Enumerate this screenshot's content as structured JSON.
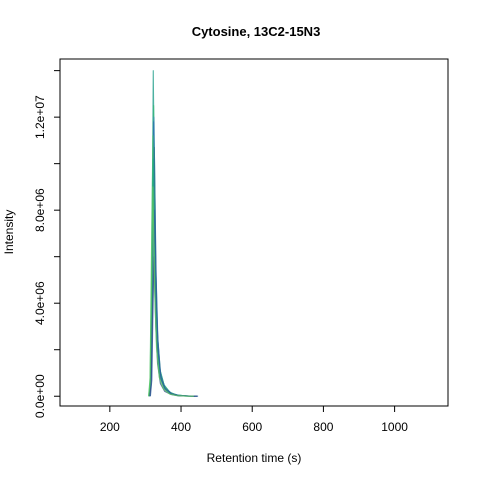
{
  "chart_data": {
    "type": "line",
    "title": "Cytosine, 13C2-15N3",
    "xlabel": "Retention time (s)",
    "ylabel": "Intensity",
    "xlim": [
      60,
      1150
    ],
    "ylim": [
      -420000,
      14500000
    ],
    "x_ticks": [
      200,
      400,
      600,
      800,
      1000
    ],
    "x_tick_labels": [
      "200",
      "400",
      "600",
      "800",
      "1000"
    ],
    "y_ticks": [
      0,
      2000000,
      4000000,
      6000000,
      8000000,
      10000000,
      12000000,
      14000000
    ],
    "y_tick_labels": [
      "0.0e+00",
      "",
      "4.0e+06",
      "",
      "8.0e+06",
      "",
      "1.2e+07",
      ""
    ],
    "grid": false,
    "legend": "none",
    "series": [
      {
        "color": "#1f9e89",
        "apex_x": 322,
        "apex_y": 14000000,
        "values": [
          [
            310,
            0
          ],
          [
            314,
            500000
          ],
          [
            318,
            5000000
          ],
          [
            322,
            14000000
          ],
          [
            327,
            6500000
          ],
          [
            332,
            3000000
          ],
          [
            340,
            1200000
          ],
          [
            352,
            500000
          ],
          [
            368,
            180000
          ],
          [
            385,
            60000
          ],
          [
            410,
            20000
          ],
          [
            440,
            0
          ]
        ]
      },
      {
        "color": "#35b779",
        "apex_x": 323,
        "apex_y": 12500000,
        "values": [
          [
            310,
            0
          ],
          [
            315,
            700000
          ],
          [
            319,
            6000000
          ],
          [
            323,
            12500000
          ],
          [
            328,
            6000000
          ],
          [
            333,
            2800000
          ],
          [
            341,
            1100000
          ],
          [
            353,
            450000
          ],
          [
            370,
            150000
          ],
          [
            390,
            50000
          ],
          [
            415,
            15000
          ],
          [
            440,
            0
          ]
        ]
      },
      {
        "color": "#3a8fb7",
        "apex_x": 324,
        "apex_y": 12000000,
        "values": [
          [
            312,
            0
          ],
          [
            316,
            900000
          ],
          [
            320,
            6500000
          ],
          [
            324,
            12000000
          ],
          [
            329,
            5800000
          ],
          [
            334,
            2700000
          ],
          [
            342,
            1000000
          ],
          [
            354,
            400000
          ],
          [
            372,
            140000
          ],
          [
            392,
            40000
          ],
          [
            420,
            12000
          ],
          [
            445,
            0
          ]
        ]
      },
      {
        "color": "#2d6fb0",
        "apex_x": 323,
        "apex_y": 11800000,
        "values": [
          [
            311,
            0
          ],
          [
            315,
            600000
          ],
          [
            319,
            5500000
          ],
          [
            323,
            11800000
          ],
          [
            328,
            5600000
          ],
          [
            333,
            2500000
          ],
          [
            341,
            950000
          ],
          [
            353,
            380000
          ],
          [
            371,
            120000
          ],
          [
            390,
            35000
          ],
          [
            418,
            10000
          ],
          [
            440,
            0
          ]
        ]
      },
      {
        "color": "#43bf71",
        "apex_x": 321,
        "apex_y": 11200000,
        "values": [
          [
            309,
            0
          ],
          [
            313,
            800000
          ],
          [
            317,
            6200000
          ],
          [
            321,
            11200000
          ],
          [
            326,
            6200000
          ],
          [
            331,
            2900000
          ],
          [
            339,
            1150000
          ],
          [
            351,
            470000
          ],
          [
            368,
            160000
          ],
          [
            388,
            45000
          ],
          [
            412,
            14000
          ],
          [
            436,
            0
          ]
        ]
      },
      {
        "color": "#2a788e",
        "apex_x": 325,
        "apex_y": 10700000,
        "values": [
          [
            313,
            0
          ],
          [
            317,
            1000000
          ],
          [
            321,
            6000000
          ],
          [
            325,
            10700000
          ],
          [
            330,
            5200000
          ],
          [
            335,
            2400000
          ],
          [
            343,
            900000
          ],
          [
            355,
            360000
          ],
          [
            374,
            110000
          ],
          [
            394,
            30000
          ],
          [
            422,
            9000
          ],
          [
            446,
            0
          ]
        ]
      },
      {
        "color": "#22a884",
        "apex_x": 322,
        "apex_y": 10200000,
        "values": [
          [
            310,
            0
          ],
          [
            314,
            500000
          ],
          [
            318,
            5000000
          ],
          [
            322,
            10200000
          ],
          [
            327,
            5100000
          ],
          [
            332,
            2300000
          ],
          [
            340,
            880000
          ],
          [
            352,
            340000
          ],
          [
            369,
            100000
          ],
          [
            389,
            28000
          ],
          [
            414,
            8000
          ],
          [
            438,
            0
          ]
        ]
      },
      {
        "color": "#2c5f9e",
        "apex_x": 326,
        "apex_y": 8000000,
        "values": [
          [
            314,
            0
          ],
          [
            318,
            700000
          ],
          [
            322,
            4500000
          ],
          [
            326,
            8000000
          ],
          [
            331,
            4000000
          ],
          [
            336,
            1900000
          ],
          [
            344,
            720000
          ],
          [
            356,
            280000
          ],
          [
            375,
            90000
          ],
          [
            395,
            25000
          ],
          [
            423,
            7000
          ],
          [
            448,
            0
          ]
        ]
      },
      {
        "color": "#3b528b",
        "apex_x": 324,
        "apex_y": 6000000,
        "values": [
          [
            312,
            0
          ],
          [
            316,
            500000
          ],
          [
            320,
            3500000
          ],
          [
            324,
            6000000
          ],
          [
            329,
            3000000
          ],
          [
            334,
            1400000
          ],
          [
            342,
            540000
          ],
          [
            354,
            210000
          ],
          [
            373,
            70000
          ],
          [
            393,
            20000
          ],
          [
            420,
            6000
          ],
          [
            445,
            0
          ]
        ]
      },
      {
        "color": "#5ec962",
        "apex_x": 321,
        "apex_y": 9000000,
        "values": [
          [
            309,
            0
          ],
          [
            313,
            600000
          ],
          [
            317,
            4800000
          ],
          [
            321,
            9000000
          ],
          [
            326,
            4500000
          ],
          [
            331,
            2100000
          ],
          [
            339,
            800000
          ],
          [
            351,
            310000
          ],
          [
            368,
            95000
          ],
          [
            388,
            26000
          ],
          [
            412,
            7500
          ],
          [
            436,
            0
          ]
        ]
      }
    ]
  }
}
